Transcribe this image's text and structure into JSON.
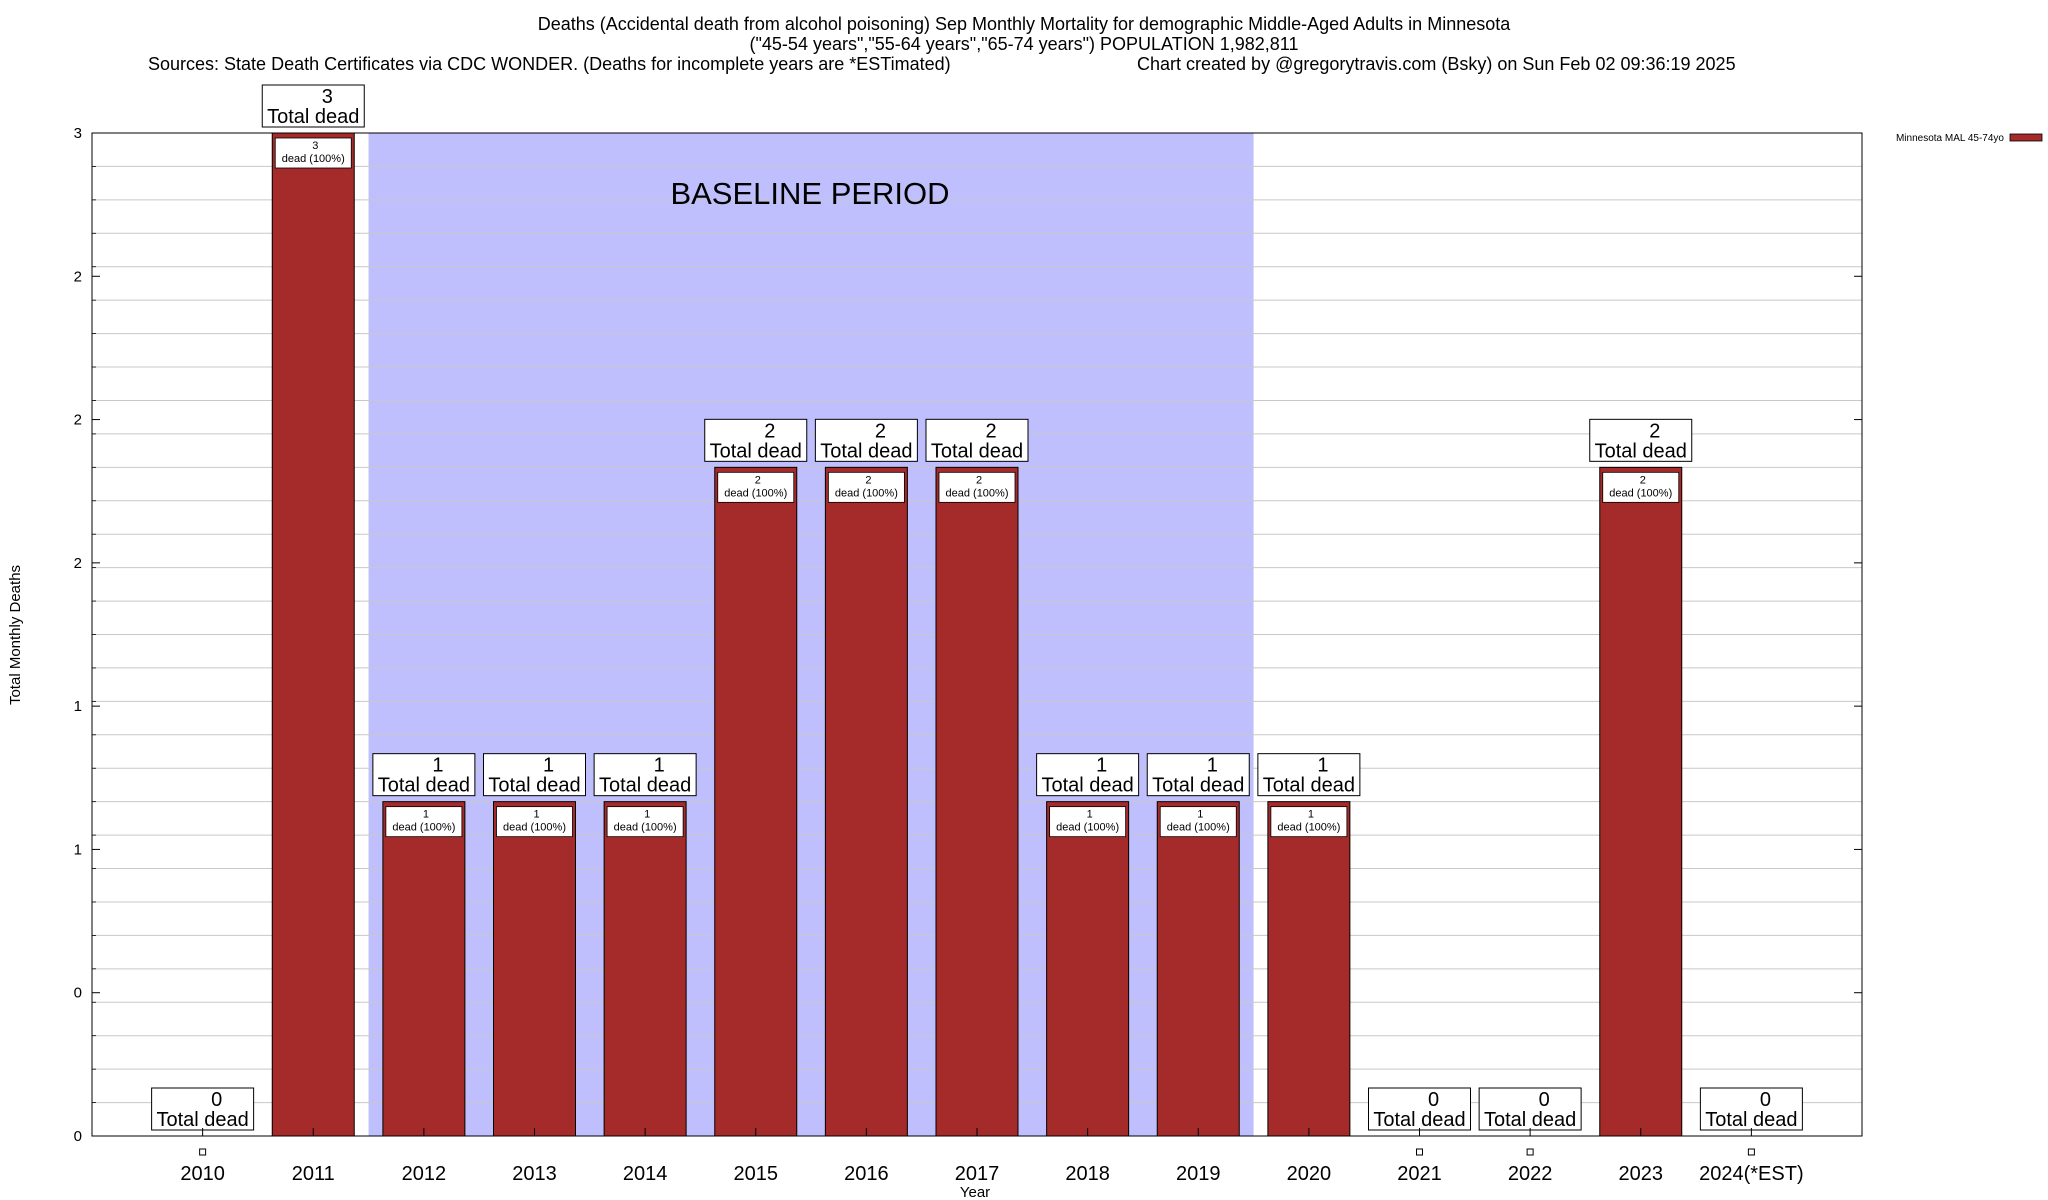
{
  "header": {
    "title": "Deaths (Accidental death from alcohol poisoning) Sep Monthly Mortality for demographic Middle-Aged Adults in Minnesota",
    "subtitle": "(\"45-54 years\",\"55-64 years\",\"65-74 years\") POPULATION 1,982,811",
    "sources": "Sources: State Death Certificates via CDC WONDER. (Deaths for incomplete years are *ESTimated)",
    "credit": "Chart created by @gregorytravis.com (Bsky) on Sun Feb 02 09:36:19 2025"
  },
  "chart_data": {
    "type": "bar",
    "xlabel": "Year",
    "ylabel": "Total Monthly Deaths",
    "categories": [
      "2010",
      "2011",
      "2012",
      "2013",
      "2014",
      "2015",
      "2016",
      "2017",
      "2018",
      "2019",
      "2020",
      "2021",
      "2022",
      "2023",
      "2024(*EST)"
    ],
    "series": [
      {
        "name": "Minnesota MAL 45-74yo",
        "color": "#a52a2a",
        "values": [
          0,
          3,
          1,
          1,
          1,
          2,
          2,
          2,
          1,
          1,
          1,
          0,
          0,
          2,
          0
        ]
      }
    ],
    "ylim": [
      0,
      3
    ],
    "ytick_labels": [
      "0",
      "0",
      "1",
      "1",
      "2",
      "2",
      "2",
      "3"
    ],
    "grid": true,
    "legend_position": "top-right",
    "baseline_label": "BASELINE PERIOD",
    "baseline_range": [
      "2012",
      "2019"
    ],
    "baseline_color": "#bfbffd",
    "total_label": "Total dead",
    "bar_label_suffix": "dead (100%)"
  }
}
